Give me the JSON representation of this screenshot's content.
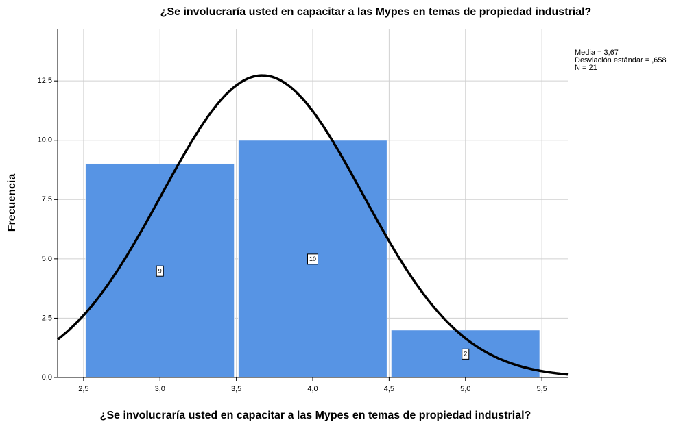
{
  "chart_data": {
    "type": "histogram",
    "title": "¿Se involucraría usted en capacitar a las Mypes en temas de propiedad industrial?",
    "xlabel": "¿Se involucraría usted en capacitar a las Mypes en temas de propiedad industrial?",
    "ylabel": "Frecuencia",
    "bins": [
      2.5,
      3.5,
      4.5,
      5.5
    ],
    "values": [
      9,
      10,
      2
    ],
    "color": "#5794e4",
    "xlim": [
      2.33,
      5.67
    ],
    "ylim": [
      0,
      14.7
    ],
    "xticks": [
      {
        "value": 2.5,
        "label": "2,5"
      },
      {
        "value": 3.0,
        "label": "3,0"
      },
      {
        "value": 3.5,
        "label": "3,5"
      },
      {
        "value": 4.0,
        "label": "4,0"
      },
      {
        "value": 4.5,
        "label": "4,5"
      },
      {
        "value": 5.0,
        "label": "5,0"
      },
      {
        "value": 5.5,
        "label": "5,5"
      }
    ],
    "yticks": [
      {
        "value": 0,
        "label": "0,0"
      },
      {
        "value": 2.5,
        "label": "2,5"
      },
      {
        "value": 5.0,
        "label": "5,0"
      },
      {
        "value": 7.5,
        "label": "7,5"
      },
      {
        "value": 10.0,
        "label": "10,0"
      },
      {
        "value": 12.5,
        "label": "12,5"
      }
    ],
    "grid": true,
    "annotations": [
      "Media = 3,67",
      "Desviación estándar = ,658",
      "N = 21"
    ],
    "normal_curve": {
      "mean": 3.67,
      "sd": 0.658,
      "n": 21
    }
  }
}
